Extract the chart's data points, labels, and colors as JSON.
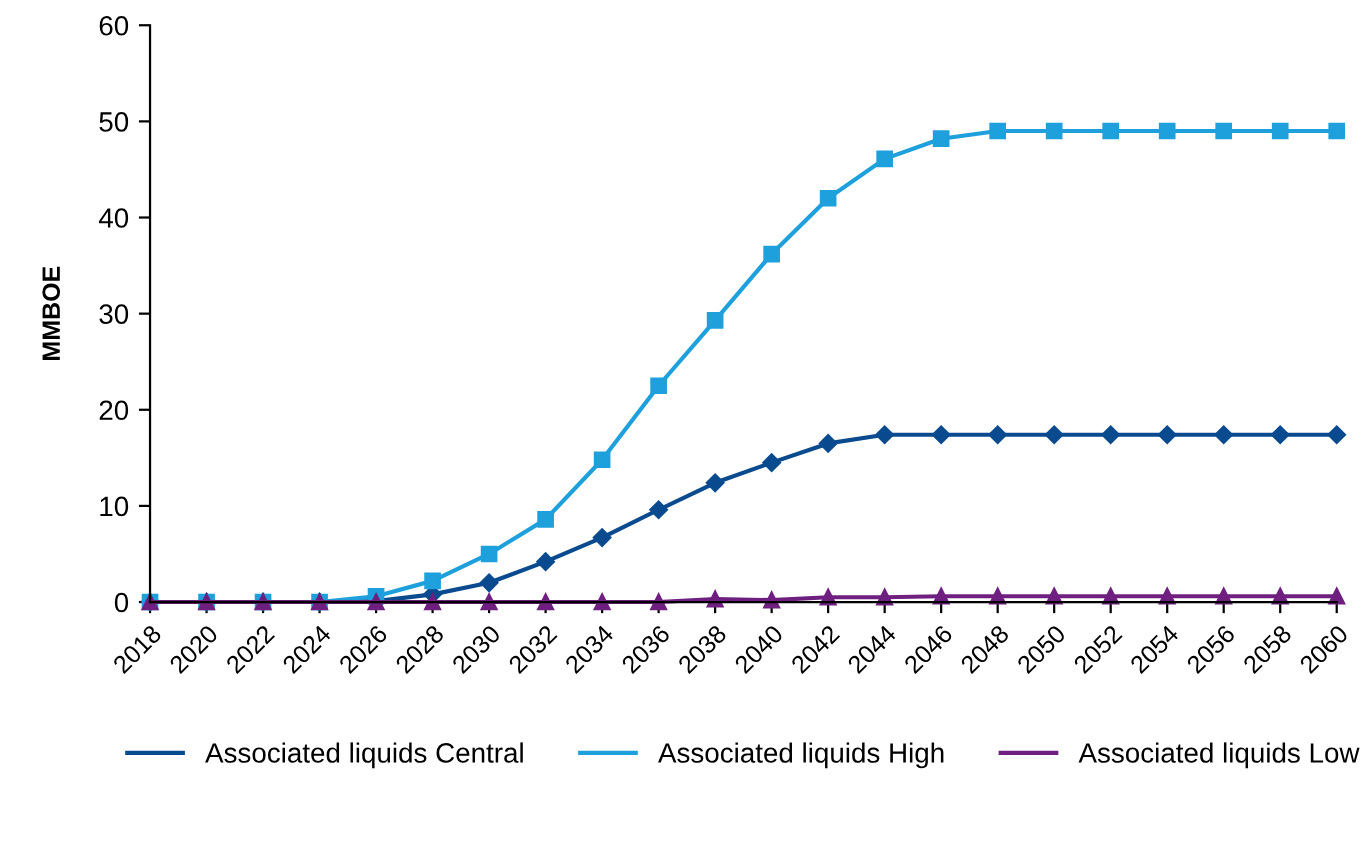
{
  "chart_data": {
    "type": "line",
    "ylabel": "MMBOE",
    "x": [
      2018,
      2020,
      2022,
      2024,
      2026,
      2028,
      2030,
      2032,
      2034,
      2036,
      2038,
      2040,
      2042,
      2044,
      2046,
      2048,
      2050,
      2052,
      2054,
      2056,
      2058,
      2060
    ],
    "series": [
      {
        "name": "Associated liquids Central",
        "color": "#0a4a8f",
        "marker": "diamond",
        "values": [
          0,
          0,
          0,
          0,
          0.1,
          0.8,
          2,
          4.2,
          6.7,
          9.6,
          12.4,
          14.5,
          16.5,
          17.4,
          17.4,
          17.4,
          17.4,
          17.4,
          17.4,
          17.4,
          17.4,
          17.4
        ]
      },
      {
        "name": "Associated liquids High",
        "color": "#1ea0dc",
        "marker": "square",
        "values": [
          0,
          0,
          0,
          0,
          0.6,
          2.2,
          5,
          8.6,
          14.8,
          22.5,
          29.3,
          36.2,
          42,
          46.1,
          48.2,
          49,
          49,
          49,
          49,
          49,
          49,
          49
        ]
      },
      {
        "name": "Associated liquids Low",
        "color": "#6e1f7f",
        "marker": "triangle",
        "values": [
          0,
          0,
          0,
          0,
          0,
          0,
          0,
          0,
          0,
          0,
          0.3,
          0.2,
          0.5,
          0.5,
          0.6,
          0.6,
          0.6,
          0.6,
          0.6,
          0.6,
          0.6,
          0.6
        ]
      }
    ],
    "xlim": [
      2018,
      2060
    ],
    "xticks": [
      2018,
      2020,
      2022,
      2024,
      2026,
      2028,
      2030,
      2032,
      2034,
      2036,
      2038,
      2040,
      2042,
      2044,
      2046,
      2048,
      2050,
      2052,
      2054,
      2056,
      2058,
      2060
    ],
    "ylim": [
      0,
      60
    ],
    "yticks": [
      0,
      10,
      20,
      30,
      40,
      50,
      60
    ],
    "grid": false,
    "legend": "bottom"
  }
}
